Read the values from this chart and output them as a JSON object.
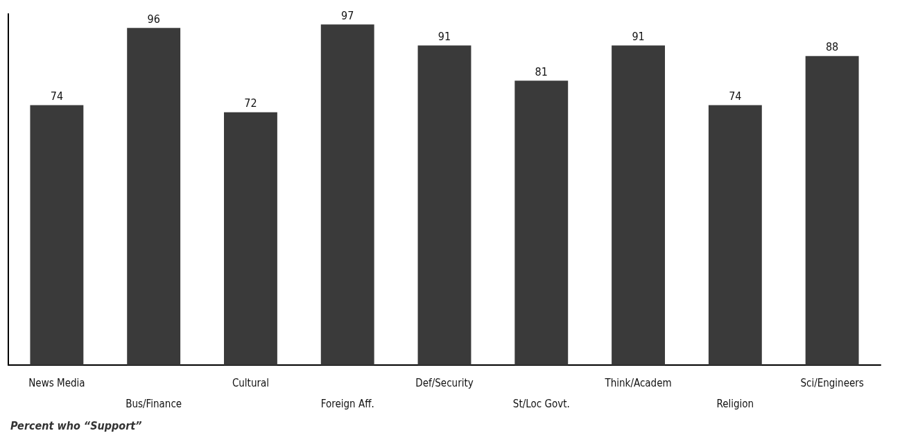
{
  "chart_data": {
    "type": "bar",
    "categories": [
      "News Media",
      "Bus/Finance",
      "Cultural",
      "Foreign Aff.",
      "Def/Security",
      "St/Loc Govt.",
      "Think/Academ",
      "Religion",
      "Sci/Engineers"
    ],
    "values": [
      74,
      96,
      72,
      97,
      91,
      81,
      91,
      74,
      88
    ],
    "color": "#3a3a3a",
    "data_labels": true,
    "tick_labels": "x",
    "annotations": [
      "Percent who “Support”"
    ]
  }
}
